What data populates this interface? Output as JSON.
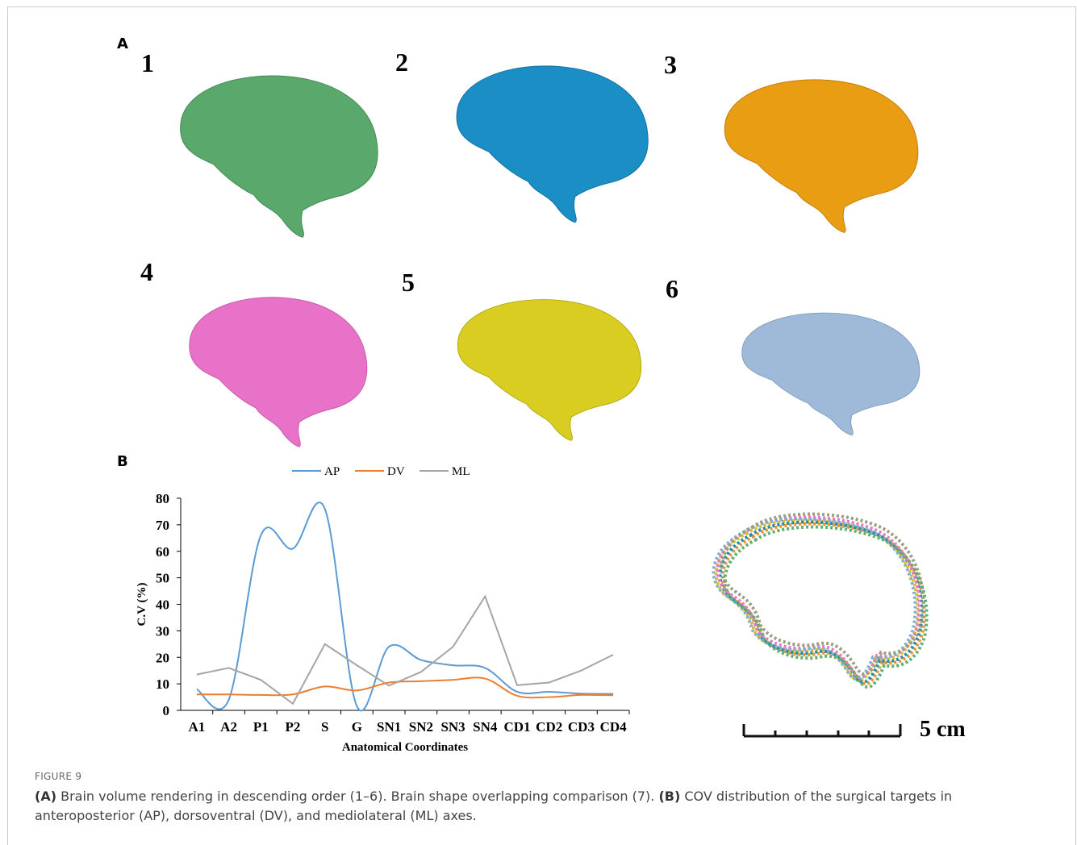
{
  "panels": {
    "a": "A",
    "b": "B",
    "brains": [
      "1",
      "2",
      "3",
      "4",
      "5",
      "6"
    ],
    "scale": "5 cm"
  },
  "chart_data": {
    "type": "line",
    "x_label": "Anatomical Coordinates",
    "y_label": "C.V (%)",
    "categories": [
      "A1",
      "A2",
      "P1",
      "P2",
      "S",
      "G",
      "SN1",
      "SN2",
      "SN3",
      "SN4",
      "CD1",
      "CD2",
      "CD3",
      "CD4"
    ],
    "series": [
      {
        "name": "AP",
        "color": "#5b9bd5",
        "smooth": true,
        "values": [
          8,
          4,
          66,
          61,
          76,
          1.5,
          24,
          19,
          17,
          16,
          7,
          7,
          6.3,
          6.2
        ]
      },
      {
        "name": "DV",
        "color": "#ed7d31",
        "smooth": true,
        "values": [
          6,
          6,
          5.8,
          6,
          9,
          7.5,
          10.5,
          11,
          11.5,
          12,
          5.5,
          5,
          5.8,
          5.7
        ]
      },
      {
        "name": "ML",
        "color": "#a5a5a5",
        "smooth": false,
        "values": [
          13.5,
          16,
          11.5,
          2.5,
          25,
          17,
          9.3,
          14.5,
          24,
          43,
          9.5,
          10.5,
          15,
          21
        ]
      }
    ],
    "ylim": [
      0,
      80
    ],
    "yticks": [
      0,
      10,
      20,
      30,
      40,
      50,
      60,
      70,
      80
    ],
    "legend": "top"
  },
  "caption": {
    "label": "FIGURE 9",
    "parts": [
      "(A)",
      " Brain volume rendering in descending order (1–6). Brain shape overlapping comparison (7). ",
      "(B)",
      " COV distribution of the surgical targets in anteroposterior (AP), dorsoventral (DV), and mediolateral (ML) axes."
    ]
  }
}
